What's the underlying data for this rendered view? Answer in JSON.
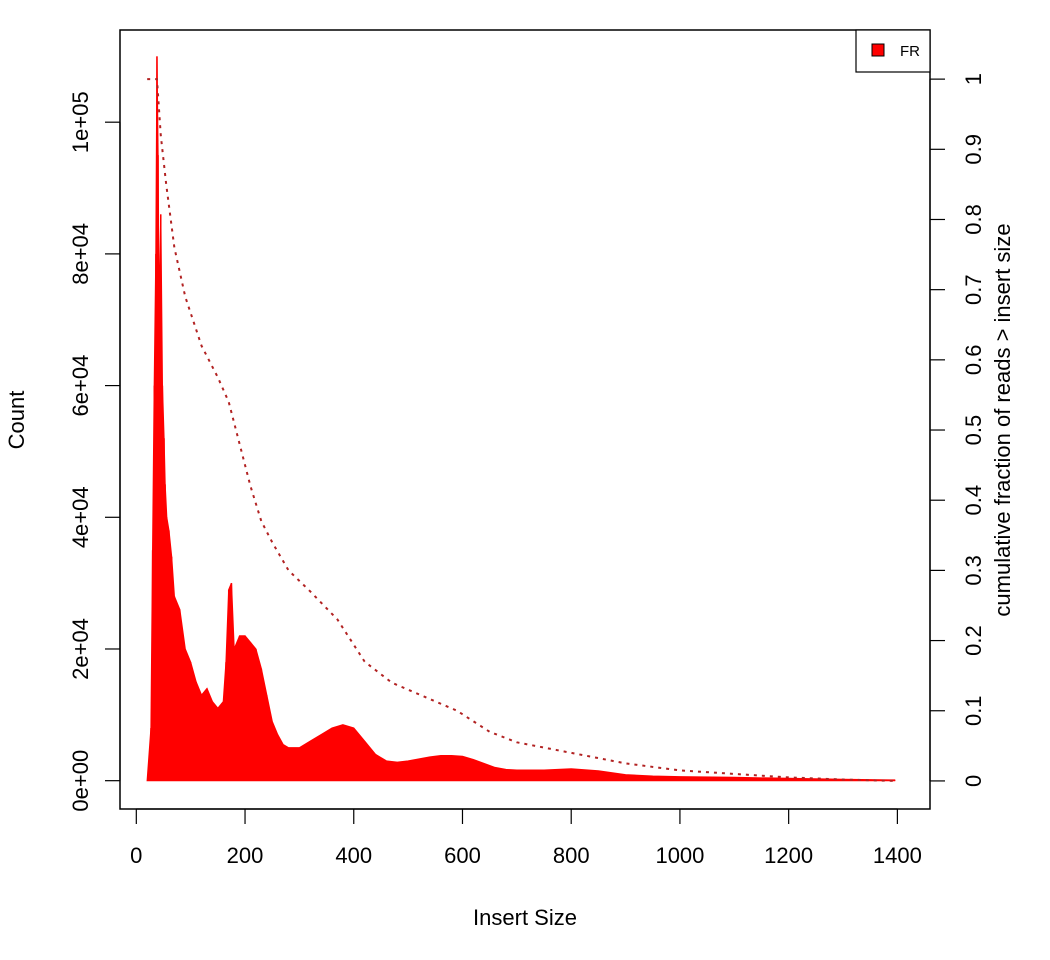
{
  "chart_data": {
    "type": "area",
    "xlabel": "Insert Size",
    "ylabel": "Count",
    "y2label": "cumulative fraction of reads > insert size",
    "xlim": [
      -30,
      1460
    ],
    "ylim": [
      -4300,
      114000
    ],
    "y2lim": [
      -0.04,
      1.07
    ],
    "xticks": [
      0,
      200,
      400,
      600,
      800,
      1000,
      1200,
      1400
    ],
    "yticks": [
      0,
      20000,
      40000,
      60000,
      80000,
      100000
    ],
    "ytick_labels": [
      "0e+00",
      "2e+04",
      "4e+04",
      "6e+04",
      "8e+04",
      "1e+05"
    ],
    "y2ticks": [
      0,
      0.1,
      0.2,
      0.3,
      0.4,
      0.5,
      0.6,
      0.7,
      0.8,
      0.9,
      1
    ],
    "y2tick_labels": [
      "0",
      "0.1",
      "0.2",
      "0.3",
      "0.4",
      "0.5",
      "0.6",
      "0.7",
      "0.8",
      "0.9",
      "1"
    ],
    "legend": {
      "position": "top-right",
      "entries": [
        {
          "name": "FR",
          "color": "#ff0000"
        }
      ]
    },
    "histogram": {
      "name": "FR",
      "color": "#ff0000",
      "x": [
        20,
        27,
        30,
        33,
        36,
        38,
        40,
        42,
        45,
        48,
        51,
        53,
        56,
        60,
        65,
        70,
        80,
        90,
        100,
        110,
        120,
        130,
        140,
        150,
        160,
        165,
        170,
        175,
        180,
        190,
        200,
        210,
        220,
        230,
        240,
        250,
        260,
        270,
        280,
        300,
        320,
        340,
        360,
        380,
        400,
        420,
        440,
        460,
        480,
        500,
        520,
        540,
        560,
        580,
        600,
        620,
        640,
        660,
        680,
        700,
        750,
        800,
        850,
        900,
        950,
        1000,
        1100,
        1200,
        1300,
        1395
      ],
      "y": [
        0,
        8000,
        35000,
        60000,
        80000,
        110000,
        95000,
        70000,
        86000,
        60000,
        52000,
        45000,
        40000,
        38000,
        34000,
        28000,
        26000,
        20000,
        18000,
        15000,
        13000,
        14000,
        12000,
        11000,
        12000,
        18000,
        29000,
        30000,
        20000,
        22000,
        22000,
        21000,
        20000,
        17000,
        13000,
        9000,
        7000,
        5500,
        5000,
        5000,
        6000,
        7000,
        8000,
        8500,
        8000,
        6000,
        4000,
        3000,
        2800,
        3000,
        3300,
        3600,
        3800,
        3800,
        3700,
        3200,
        2600,
        2000,
        1700,
        1600,
        1600,
        1800,
        1500,
        900,
        700,
        600,
        500,
        350,
        200,
        100
      ]
    },
    "cumulative": {
      "style": "dotted",
      "color": "#b22222",
      "x": [
        20,
        38,
        45,
        55,
        70,
        90,
        120,
        150,
        170,
        190,
        210,
        230,
        250,
        280,
        320,
        370,
        420,
        470,
        530,
        590,
        650,
        700,
        800,
        900,
        1000,
        1100,
        1200,
        1300,
        1395
      ],
      "y": [
        1.0,
        1.0,
        0.92,
        0.85,
        0.76,
        0.69,
        0.62,
        0.575,
        0.54,
        0.48,
        0.42,
        0.37,
        0.34,
        0.3,
        0.27,
        0.23,
        0.17,
        0.14,
        0.12,
        0.1,
        0.07,
        0.055,
        0.04,
        0.025,
        0.015,
        0.01,
        0.005,
        0.002,
        0.0
      ]
    }
  }
}
